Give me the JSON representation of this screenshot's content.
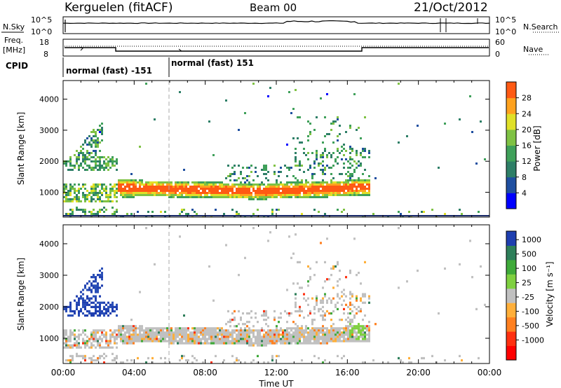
{
  "header": {
    "station": "Kerguelen (fitACF)",
    "beam": "Beam 00",
    "date": "21/Oct/2012"
  },
  "panels": {
    "nsky": {
      "label": "N.Sky",
      "ticks_left": [
        "10^5",
        "10^0"
      ],
      "ticks_right": [
        "10^5",
        "10^0"
      ],
      "right_label": "N.Search"
    },
    "freq": {
      "label_line1": "Freq.",
      "label_line2": "[MHz]",
      "ticks_left": [
        "18",
        "8"
      ],
      "ticks_right": [
        "60",
        "0"
      ],
      "right_label": "Nave"
    },
    "cpid": {
      "label": "CPID",
      "segments": [
        "normal (fast) -151",
        "normal (fast) 151"
      ]
    }
  },
  "colors": {
    "power_scale": [
      "#0000ff",
      "#1f4fa0",
      "#2e7f67",
      "#3fa05a",
      "#7fc244",
      "#e0e028",
      "#ffa21e",
      "#ff5a14",
      "#ff0000"
    ],
    "velocity_scale": [
      "#1f3fb0",
      "#2a4fb7",
      "#2e7f5a",
      "#3faa3a",
      "#7fd040",
      "#c0c0c0",
      "#ffaf3a",
      "#ff8020",
      "#ff3010",
      "#ff0000"
    ]
  },
  "chart_data": [
    {
      "type": "line",
      "name": "N.Sky / N.Search",
      "x": [
        "00:00",
        "04:00",
        "08:00",
        "12:00",
        "16:00",
        "20:00",
        "00:00"
      ],
      "values_log10": [
        4.0,
        4.0,
        4.05,
        4.15,
        4.25,
        4.0,
        4.0
      ]
    },
    {
      "type": "line",
      "name": "Freq / Nave",
      "x": [
        "00:00",
        "03:00",
        "17:00",
        "24:00"
      ],
      "values": [
        12.9,
        10.6,
        12.9,
        12.9
      ],
      "ylim_left": [
        8,
        18
      ],
      "ylim_right": [
        0,
        60
      ]
    },
    {
      "type": "heatmap",
      "title": "Power",
      "xlabel": "Time UT",
      "ylabel": "Slant Range [km]",
      "x_ticks": [
        "00:00",
        "04:00",
        "08:00",
        "12:00",
        "16:00",
        "20:00",
        "00:00"
      ],
      "y_ticks": [
        "1000",
        "2000",
        "3000",
        "4000"
      ],
      "ylim": [
        200,
        4600
      ],
      "colorbar_label": "Power [dB]",
      "colorbar_ticks": [
        "4",
        "8",
        "12",
        "16",
        "20",
        "24",
        "28"
      ],
      "colorbar_range": [
        0,
        32
      ]
    },
    {
      "type": "heatmap",
      "title": "Velocity",
      "xlabel": "Time UT",
      "ylabel": "Slant Range [km]",
      "x_ticks": [
        "00:00",
        "04:00",
        "08:00",
        "12:00",
        "16:00",
        "20:00",
        "00:00"
      ],
      "y_ticks": [
        "1000",
        "2000",
        "3000",
        "4000"
      ],
      "ylim": [
        200,
        4600
      ],
      "colorbar_label": "Velocity [m s⁻¹]",
      "colorbar_ticks": [
        "1000",
        "500",
        "100",
        "25",
        "-25",
        "-100",
        "-500",
        "-1000"
      ]
    }
  ],
  "axes": {
    "x_label": "Time UT",
    "y_label": "Slant Range [km]",
    "power_cb_label": "Power [dB]",
    "velocity_cb_label": "Velocity [m s⁻¹]"
  }
}
